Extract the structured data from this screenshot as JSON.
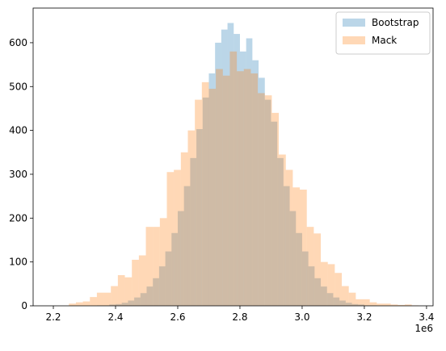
{
  "chart_data": {
    "type": "histogram",
    "series": [
      {
        "name": "Bootstrap",
        "color": "#1f77b4",
        "bins": [
          2320000,
          2340000,
          2360000,
          2380000,
          2400000,
          2420000,
          2440000,
          2460000,
          2480000,
          2500000,
          2520000,
          2540000,
          2560000,
          2580000,
          2600000,
          2620000,
          2640000,
          2660000,
          2680000,
          2700000,
          2720000,
          2740000,
          2760000,
          2780000,
          2800000,
          2820000,
          2840000,
          2860000,
          2880000,
          2900000,
          2920000,
          2940000,
          2960000,
          2980000,
          3000000,
          3020000,
          3040000,
          3060000,
          3080000,
          3100000,
          3120000,
          3140000,
          3160000,
          3180000,
          3200000,
          3220000,
          3240000,
          3260000,
          3280000,
          3300000,
          3320000
        ],
        "values": [
          0,
          1,
          1,
          3,
          4,
          7,
          12,
          19,
          29,
          44,
          63,
          90,
          124,
          166,
          216,
          273,
          337,
          403,
          475,
          530,
          600,
          630,
          645,
          620,
          580,
          610,
          560,
          520,
          470,
          420,
          337,
          273,
          216,
          166,
          124,
          90,
          63,
          44,
          29,
          19,
          12,
          7,
          4,
          3,
          1,
          1,
          0,
          0,
          0,
          0
        ]
      },
      {
        "name": "Mack",
        "color": "#ff7f0e",
        "bins": [
          2250000,
          2272500,
          2295000,
          2317500,
          2340000,
          2362500,
          2385000,
          2407500,
          2430000,
          2452500,
          2475000,
          2497500,
          2520000,
          2542500,
          2565000,
          2587500,
          2610000,
          2632500,
          2655000,
          2677500,
          2700000,
          2722500,
          2745000,
          2767500,
          2790000,
          2812500,
          2835000,
          2857500,
          2880000,
          2902500,
          2925000,
          2947500,
          2970000,
          2992500,
          3015000,
          3037500,
          3060000,
          3082500,
          3105000,
          3127500,
          3150000,
          3172500,
          3195000,
          3217500,
          3240000,
          3262500,
          3285000,
          3307500,
          3330000,
          3352500,
          3375000
        ],
        "values": [
          5,
          8,
          10,
          20,
          30,
          30,
          45,
          70,
          65,
          105,
          115,
          180,
          180,
          200,
          305,
          310,
          350,
          400,
          470,
          510,
          495,
          540,
          525,
          580,
          535,
          540,
          530,
          485,
          480,
          440,
          345,
          310,
          270,
          265,
          180,
          165,
          100,
          95,
          75,
          45,
          30,
          15,
          15,
          8,
          5,
          5,
          3,
          2,
          3,
          1
        ]
      }
    ],
    "opacity": 0.3,
    "xlim": [
      2135000,
      3421000
    ],
    "ylim": [
      0,
      679
    ],
    "xticks": [
      {
        "value": 2200000,
        "label": "2.2"
      },
      {
        "value": 2400000,
        "label": "2.4"
      },
      {
        "value": 2600000,
        "label": "2.6"
      },
      {
        "value": 2800000,
        "label": "2.8"
      },
      {
        "value": 3000000,
        "label": "3.0"
      },
      {
        "value": 3200000,
        "label": "3.2"
      },
      {
        "value": 3400000,
        "label": "3.4"
      }
    ],
    "yticks": [
      0,
      100,
      200,
      300,
      400,
      500,
      600
    ],
    "x_offset_label": "1e6",
    "legend": "upper right"
  }
}
